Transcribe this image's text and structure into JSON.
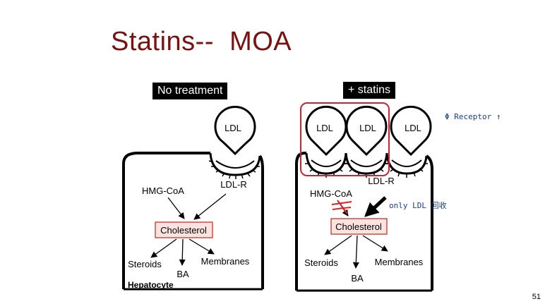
{
  "slide": {
    "title": "Statins--  MOA",
    "page_number": "51"
  },
  "left_panel": {
    "header": "No treatment",
    "ldl": "LDL",
    "receptor_label": "LDL-R",
    "hmg": "HMG-CoA",
    "cholesterol": "Cholesterol",
    "steroids": "Steroids",
    "ba": "BA",
    "membranes": "Membranes",
    "cell_label": "Hepatocyte"
  },
  "right_panel": {
    "header": "+ statins",
    "ldl_1": "LDL",
    "ldl_2": "LDL",
    "ldl_3": "LDL",
    "receptor_label": "LDL-R",
    "hmg": "HMG-CoA",
    "cholesterol": "Cholesterol",
    "steroids": "Steroids",
    "ba": "BA",
    "membranes": "Membranes"
  },
  "annotations": {
    "receptor_note": "Φ Receptor ↑",
    "only_ldl_note": "only LDL 回收"
  },
  "colors": {
    "title": "#7a1010",
    "highlight_box": "#cc2233",
    "cholesterol_fill": "#fde3df",
    "cholesterol_border": "#c0392b",
    "cross_mark": "#e02020",
    "handwriting": "#1a3d8f"
  }
}
